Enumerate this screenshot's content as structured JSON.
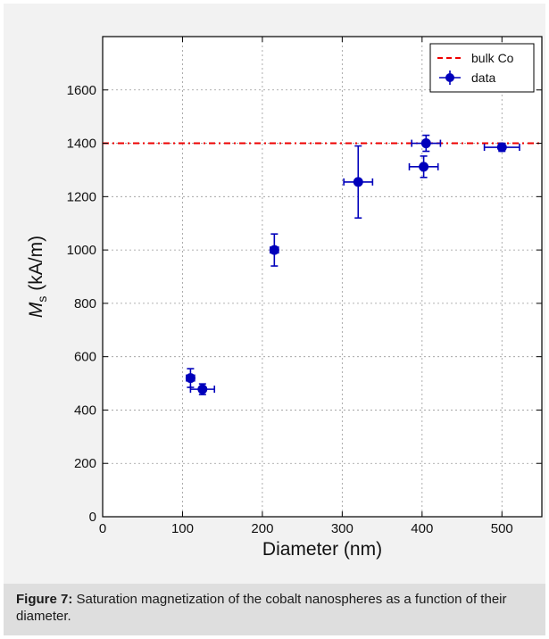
{
  "chart_data": {
    "type": "scatter",
    "title": "",
    "xlabel": "Diameter (nm)",
    "ylabel_main": "M",
    "ylabel_sub": "s",
    "ylabel_unit": " (kA/m)",
    "xlim": [
      0,
      550
    ],
    "ylim": [
      0,
      1800
    ],
    "xticks": [
      0,
      100,
      200,
      300,
      400,
      500
    ],
    "yticks": [
      0,
      200,
      400,
      600,
      800,
      1000,
      1200,
      1400,
      1600
    ],
    "grid": true,
    "legend_position": "top-right",
    "series": [
      {
        "name": "data",
        "marker": "circle",
        "color": "#0000bb",
        "points": [
          {
            "x": 110,
            "y": 520,
            "xerr": 5,
            "yerr": 35
          },
          {
            "x": 125,
            "y": 478,
            "xerr": 15,
            "yerr": 20
          },
          {
            "x": 215,
            "y": 1000,
            "xerr": 5,
            "yerr": 60
          },
          {
            "x": 320,
            "y": 1255,
            "xerr": 18,
            "yerr": 135
          },
          {
            "x": 402,
            "y": 1312,
            "xerr": 18,
            "yerr": 40
          },
          {
            "x": 405,
            "y": 1400,
            "xerr": 18,
            "yerr": 30
          },
          {
            "x": 500,
            "y": 1385,
            "xerr": 22,
            "yerr": 15
          }
        ]
      }
    ],
    "reference_lines": [
      {
        "name": "bulk Co",
        "y": 1400,
        "style": "dashed",
        "color": "#ee0000"
      }
    ]
  },
  "caption": {
    "label": "Figure 7:",
    "text": " Saturation magnetization of the cobalt nanospheres as a function of their diameter."
  }
}
